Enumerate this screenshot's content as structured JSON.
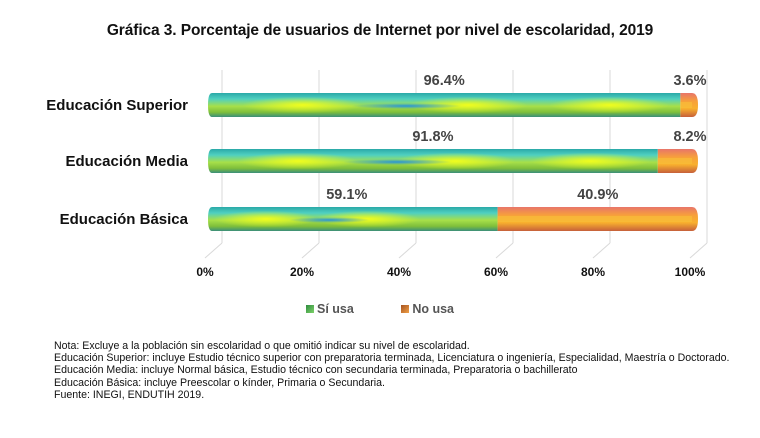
{
  "title": "Gráfica 3. Porcentaje de usuarios de Internet por nivel de escolaridad, 2019",
  "chart_data": {
    "type": "bar",
    "orientation": "horizontal",
    "stacked": true,
    "percent_stacked": true,
    "title": "Gráfica 3. Porcentaje de usuarios de Internet por nivel de escolaridad, 2019",
    "categories": [
      "Educación Superior",
      "Educación Media",
      "Educación Básica"
    ],
    "series": [
      {
        "name": "Sí usa",
        "values": [
          96.4,
          91.8,
          59.1
        ],
        "labels": [
          "96.4%",
          "91.8%",
          "59.1%"
        ],
        "color": "#3cc4b4"
      },
      {
        "name": "No usa",
        "values": [
          3.6,
          8.2,
          40.9
        ],
        "labels": [
          "3.6%",
          "8.2%",
          "40.9%"
        ],
        "color": "#f08a4b"
      }
    ],
    "xlim": [
      0,
      100
    ],
    "xticks": [
      "0%",
      "20%",
      "40%",
      "60%",
      "80%",
      "100%"
    ],
    "xlabel": "",
    "ylabel": "",
    "grid": true,
    "legend_position": "bottom"
  },
  "legend": [
    {
      "label": "Sí usa",
      "color": "#3cc4b4"
    },
    {
      "label": "No usa",
      "color": "#f08a4b"
    }
  ],
  "notes": [
    "Nota: Excluye a la población sin escolaridad o que omitió indicar su nivel de escolaridad.",
    "Educación Superior: incluye Estudio técnico superior con preparatoria terminada, Licenciatura o ingeniería, Especialidad, Maestría o Doctorado.",
    "Educación Media: incluye Normal básica, Estudio técnico con secundaria terminada, Preparatoria o bachillerato",
    "Educación Básica: incluye Preescolar o kínder, Primaria o Secundaria.",
    "Fuente: INEGI, ENDUTIH 2019."
  ]
}
